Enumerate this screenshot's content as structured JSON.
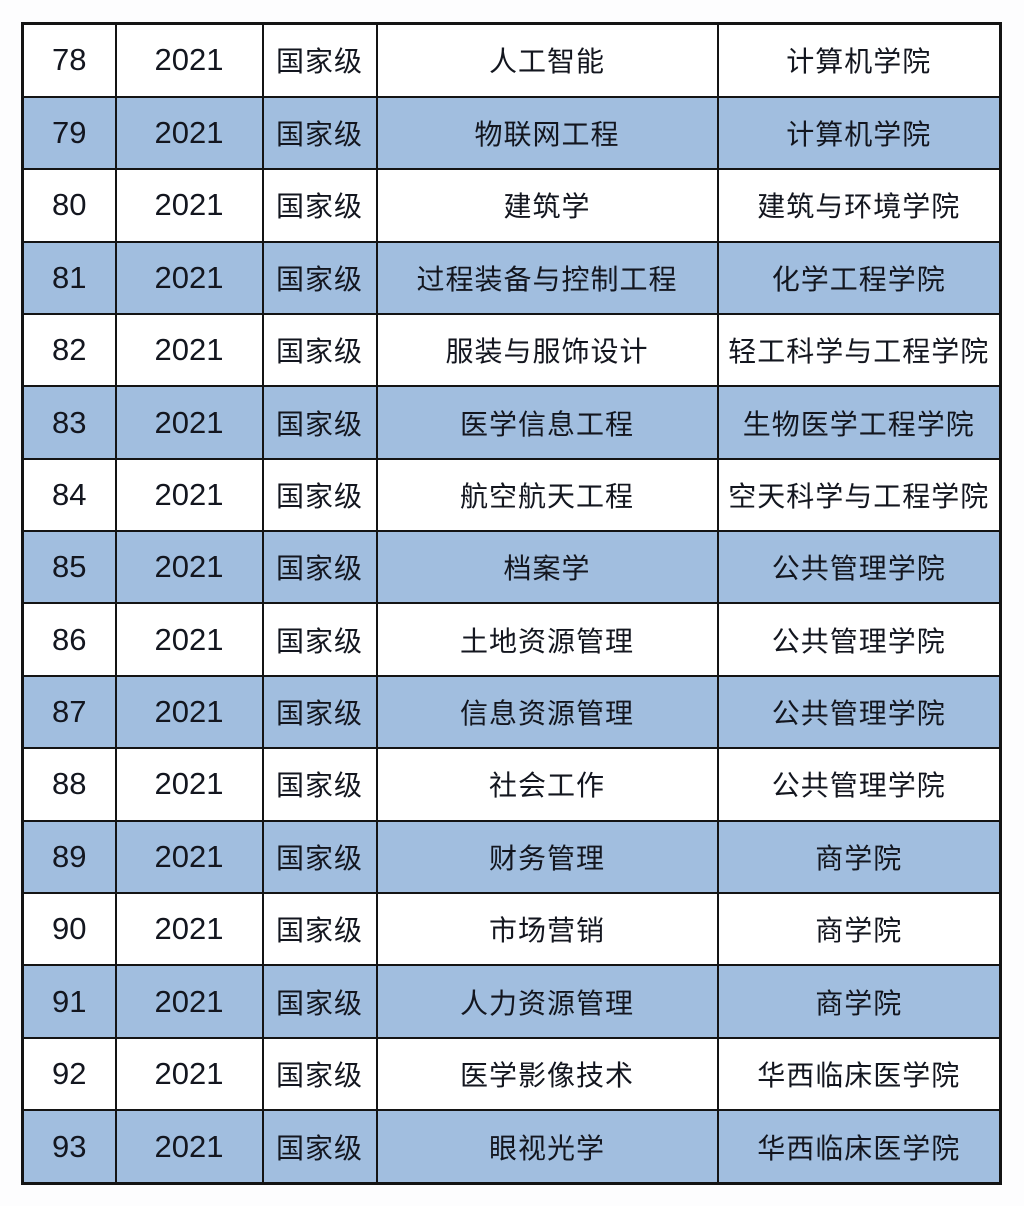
{
  "table": {
    "level_label": "国家级",
    "year_value": "2021",
    "stripe_color": "#a1bedf",
    "plain_color": "#ffffff",
    "border_color": "#141414",
    "text_color": "#13161f",
    "rows": [
      {
        "cells": [
          "78",
          "2021",
          "国家级",
          "人工智能",
          "计算机学院"
        ]
      },
      {
        "cells": [
          "79",
          "2021",
          "国家级",
          "物联网工程",
          "计算机学院"
        ]
      },
      {
        "cells": [
          "80",
          "2021",
          "国家级",
          "建筑学",
          "建筑与环境学院"
        ]
      },
      {
        "cells": [
          "81",
          "2021",
          "国家级",
          "过程装备与控制工程",
          "化学工程学院"
        ]
      },
      {
        "cells": [
          "82",
          "2021",
          "国家级",
          "服装与服饰设计",
          "轻工科学与工程学院"
        ]
      },
      {
        "cells": [
          "83",
          "2021",
          "国家级",
          "医学信息工程",
          "生物医学工程学院"
        ]
      },
      {
        "cells": [
          "84",
          "2021",
          "国家级",
          "航空航天工程",
          "空天科学与工程学院"
        ]
      },
      {
        "cells": [
          "85",
          "2021",
          "国家级",
          "档案学",
          "公共管理学院"
        ]
      },
      {
        "cells": [
          "86",
          "2021",
          "国家级",
          "土地资源管理",
          "公共管理学院"
        ]
      },
      {
        "cells": [
          "87",
          "2021",
          "国家级",
          "信息资源管理",
          "公共管理学院"
        ]
      },
      {
        "cells": [
          "88",
          "2021",
          "国家级",
          "社会工作",
          "公共管理学院"
        ]
      },
      {
        "cells": [
          "89",
          "2021",
          "国家级",
          "财务管理",
          "商学院"
        ]
      },
      {
        "cells": [
          "90",
          "2021",
          "国家级",
          "市场营销",
          "商学院"
        ]
      },
      {
        "cells": [
          "91",
          "2021",
          "国家级",
          "人力资源管理",
          "商学院"
        ]
      },
      {
        "cells": [
          "92",
          "2021",
          "国家级",
          "医学影像技术",
          "华西临床医学院"
        ]
      },
      {
        "cells": [
          "93",
          "2021",
          "国家级",
          "眼视光学",
          "华西临床医学院"
        ]
      }
    ]
  }
}
